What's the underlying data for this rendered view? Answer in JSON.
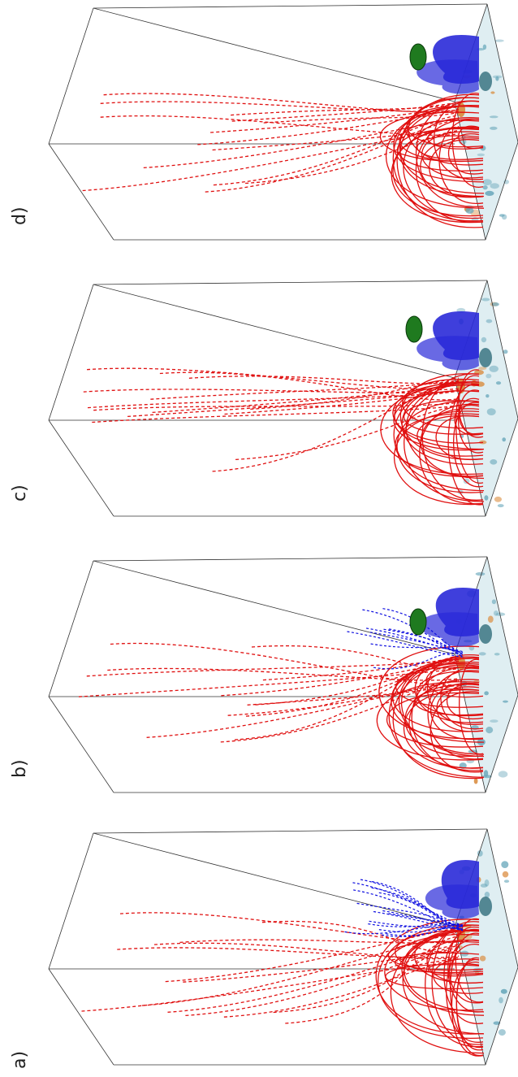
{
  "figure": {
    "panels": [
      {
        "label": "a)"
      },
      {
        "label": "b)"
      },
      {
        "label": "c)"
      },
      {
        "label": "d)"
      }
    ],
    "colors": {
      "field_lines_red": "#e01010",
      "field_lines_blue": "#1010e0",
      "box_edge": "#333333",
      "flux_rope_blue": "#2a2ad8",
      "plasmoid_green": "#1f7a1f",
      "base_surface": "#dfeef2",
      "base_spots_blue": "#6aa8bb",
      "base_spots_orange": "#d9893a"
    },
    "icons": {
      "flux_rope": "blue-flux-rope-icon",
      "plasmoid": "green-plasmoid-icon"
    }
  }
}
